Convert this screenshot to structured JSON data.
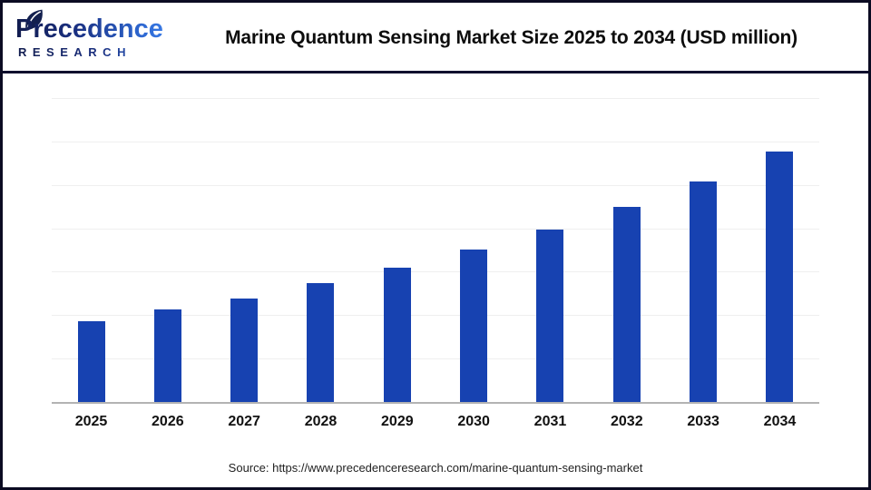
{
  "header": {
    "logo": {
      "brand": "Precedence",
      "research": "RESEARCH",
      "color_dark": "#111c4e",
      "color_light": "#2f6bd6"
    },
    "title": "Marine Quantum Sensing Market Size 2025 to 2034 (USD million)"
  },
  "chart_data": {
    "type": "bar",
    "title": "Marine Quantum Sensing Market Size 2025 to 2034 (USD million)",
    "categories": [
      "2025",
      "2026",
      "2027",
      "2028",
      "2029",
      "2030",
      "2031",
      "2032",
      "2033",
      "2034"
    ],
    "values": [
      89,
      102,
      114,
      131,
      148,
      168,
      190,
      215,
      243,
      276
    ],
    "unit": "relative bar height in px (chart displays no y-axis tick labels or data labels)",
    "xlabel": "",
    "ylabel": "",
    "ylim": [
      0,
      335
    ],
    "gridline_interval": 47.86,
    "grid": "horizontal-only",
    "legend": "none",
    "bar_color": "#1742b1",
    "axis_line_color": "#b3b3b3",
    "gridline_color": "#efefef"
  },
  "footer": {
    "source": "Source: https://www.precedenceresearch.com/marine-quantum-sensing-market"
  }
}
